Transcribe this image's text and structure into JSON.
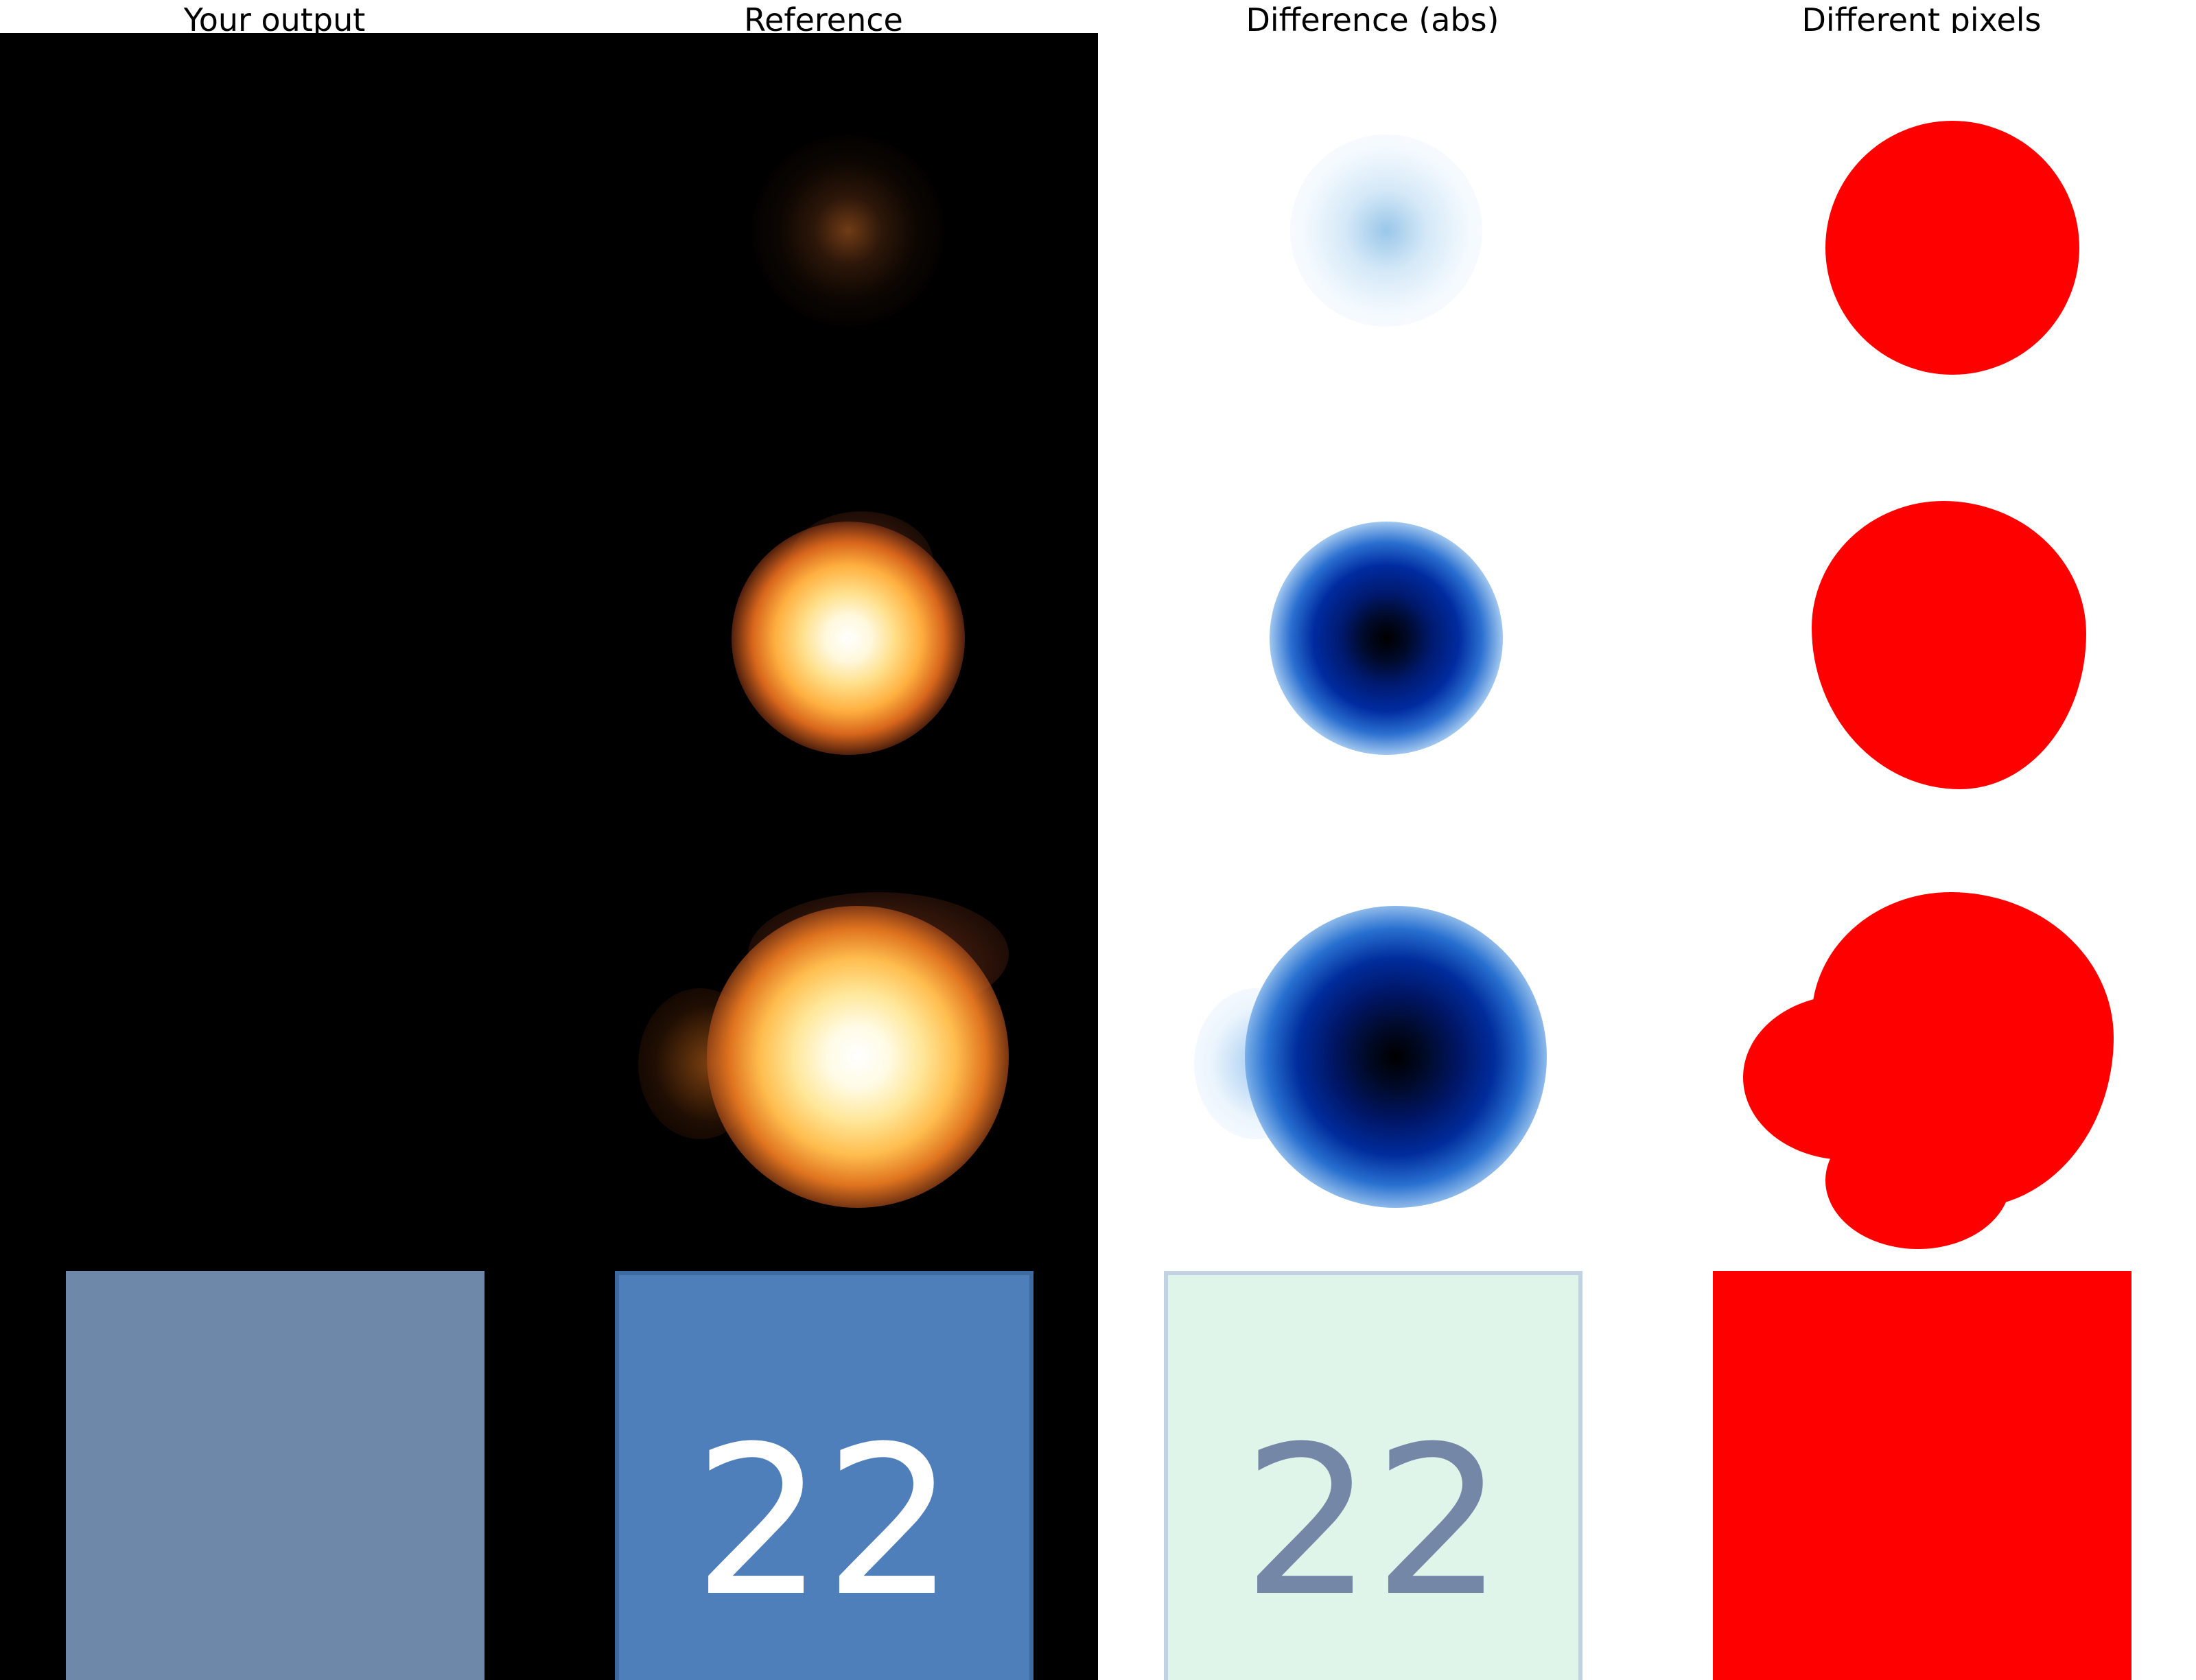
{
  "headings": {
    "output": "Your output",
    "reference": "Reference",
    "difference": "Difference (abs)",
    "different_pixels": "Different pixels"
  },
  "tile": {
    "reference_value": "22",
    "difference_value": "22"
  },
  "colors": {
    "background_dark": "#000000",
    "output_tile": "#6e88a9",
    "reference_tile": "#4e7fbb",
    "difference_tile": "#dff5ea",
    "mask_red": "#ff0000"
  }
}
